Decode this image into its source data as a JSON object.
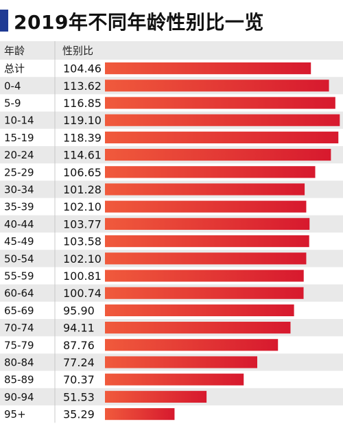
{
  "chart_data": {
    "type": "bar",
    "title": "2019年不同年龄性别比一览",
    "headers": {
      "category": "年龄",
      "value": "性别比"
    },
    "categories": [
      "总计",
      "0-4",
      "5-9",
      "10-14",
      "15-19",
      "20-24",
      "25-29",
      "30-34",
      "35-39",
      "40-44",
      "45-49",
      "50-54",
      "55-59",
      "60-64",
      "65-69",
      "70-74",
      "75-79",
      "80-84",
      "85-89",
      "90-94",
      "95+"
    ],
    "values": [
      104.46,
      113.62,
      116.85,
      119.1,
      118.39,
      114.61,
      106.65,
      101.28,
      102.1,
      103.77,
      103.58,
      102.1,
      100.81,
      100.74,
      95.9,
      94.11,
      87.76,
      77.24,
      70.37,
      51.53,
      35.29
    ],
    "value_labels": [
      "104.46",
      "113.62",
      "116.85",
      "119.10",
      "118.39",
      "114.61",
      "106.65",
      "101.28",
      "102.10",
      "103.77",
      "103.58",
      "102.10",
      "100.81",
      "100.74",
      "95.90",
      "94.11",
      "87.76",
      "77.24",
      "70.37",
      "51.53",
      "35.29"
    ],
    "orientation": "horizontal",
    "grid": false,
    "colors": {
      "bar_start": "#f05a3c",
      "bar_end": "#d7192e",
      "row_alt": "#e9e9e9",
      "divider": "#c8c8c8",
      "accent": "#1f3a93"
    }
  }
}
